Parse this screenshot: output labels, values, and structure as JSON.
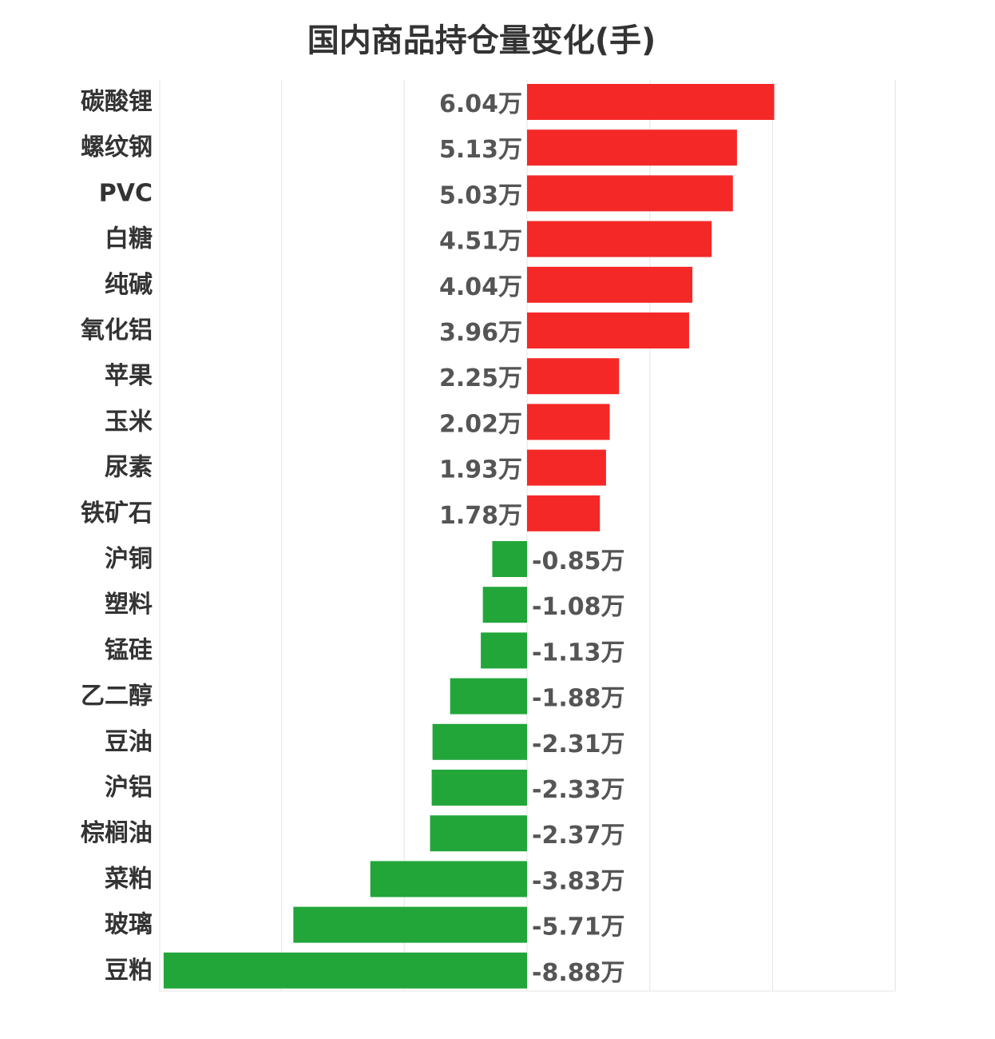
{
  "chart_data": {
    "type": "bar",
    "orientation": "horizontal",
    "title": "国内商品持仓量变化(手)",
    "unit": "万",
    "xlim": [
      -15,
      15
    ],
    "grid": true,
    "colors": {
      "positive": "#f52828",
      "negative": "#22a63a"
    },
    "categories": [
      "碳酸锂",
      "螺纹钢",
      "PVC",
      "白糖",
      "纯碱",
      "氧化铝",
      "苹果",
      "玉米",
      "尿素",
      "铁矿石",
      "沪铜",
      "塑料",
      "锰硅",
      "乙二醇",
      "豆油",
      "沪铝",
      "棕榈油",
      "菜粕",
      "玻璃",
      "豆粕"
    ],
    "values": [
      6.04,
      5.13,
      5.03,
      4.51,
      4.04,
      3.96,
      2.25,
      2.02,
      1.93,
      1.78,
      -0.85,
      -1.08,
      -1.13,
      -1.88,
      -2.31,
      -2.33,
      -2.37,
      -3.83,
      -5.71,
      -8.88
    ],
    "data_labels": [
      "6.04万",
      "5.13万",
      "5.03万",
      "4.51万",
      "4.04万",
      "3.96万",
      "2.25万",
      "2.02万",
      "1.93万",
      "1.78万",
      "-0.85万",
      "-1.08万",
      "-1.13万",
      "-1.88万",
      "-2.31万",
      "-2.33万",
      "-2.37万",
      "-3.83万",
      "-5.71万",
      "-8.88万"
    ]
  }
}
